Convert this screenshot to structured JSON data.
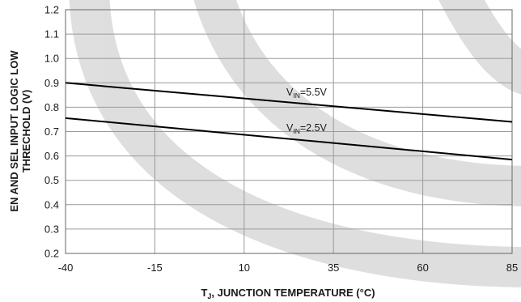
{
  "chart_data": {
    "type": "line",
    "xlabel": {
      "main": "T",
      "sub": "J",
      "rest": ", JUNCTION TEMPERATURE (°C)"
    },
    "ylabel": {
      "line1": "EN AND SEL INPUT LOGIC LOW",
      "line2": "THRECHOLD (V)"
    },
    "xlim": [
      -40,
      85
    ],
    "ylim": [
      0.2,
      1.2
    ],
    "x_ticks": [
      -40,
      -15,
      10,
      35,
      60,
      85
    ],
    "y_ticks": [
      "0.2",
      "0.3",
      "0.4",
      "0.5",
      "0.6",
      "0.7",
      "0.8",
      "0.9",
      "1.0",
      "1.1",
      "1.2"
    ],
    "grid": true,
    "series": [
      {
        "label_main": "V",
        "label_sub": "IN",
        "label_rest": "=5.5V",
        "x": [
          -40,
          85
        ],
        "y": [
          0.9,
          0.74
        ],
        "color": "#000000"
      },
      {
        "label_main": "V",
        "label_sub": "IN",
        "label_rest": "=2.5V",
        "x": [
          -40,
          85
        ],
        "y": [
          0.755,
          0.585
        ],
        "color": "#000000"
      }
    ]
  }
}
